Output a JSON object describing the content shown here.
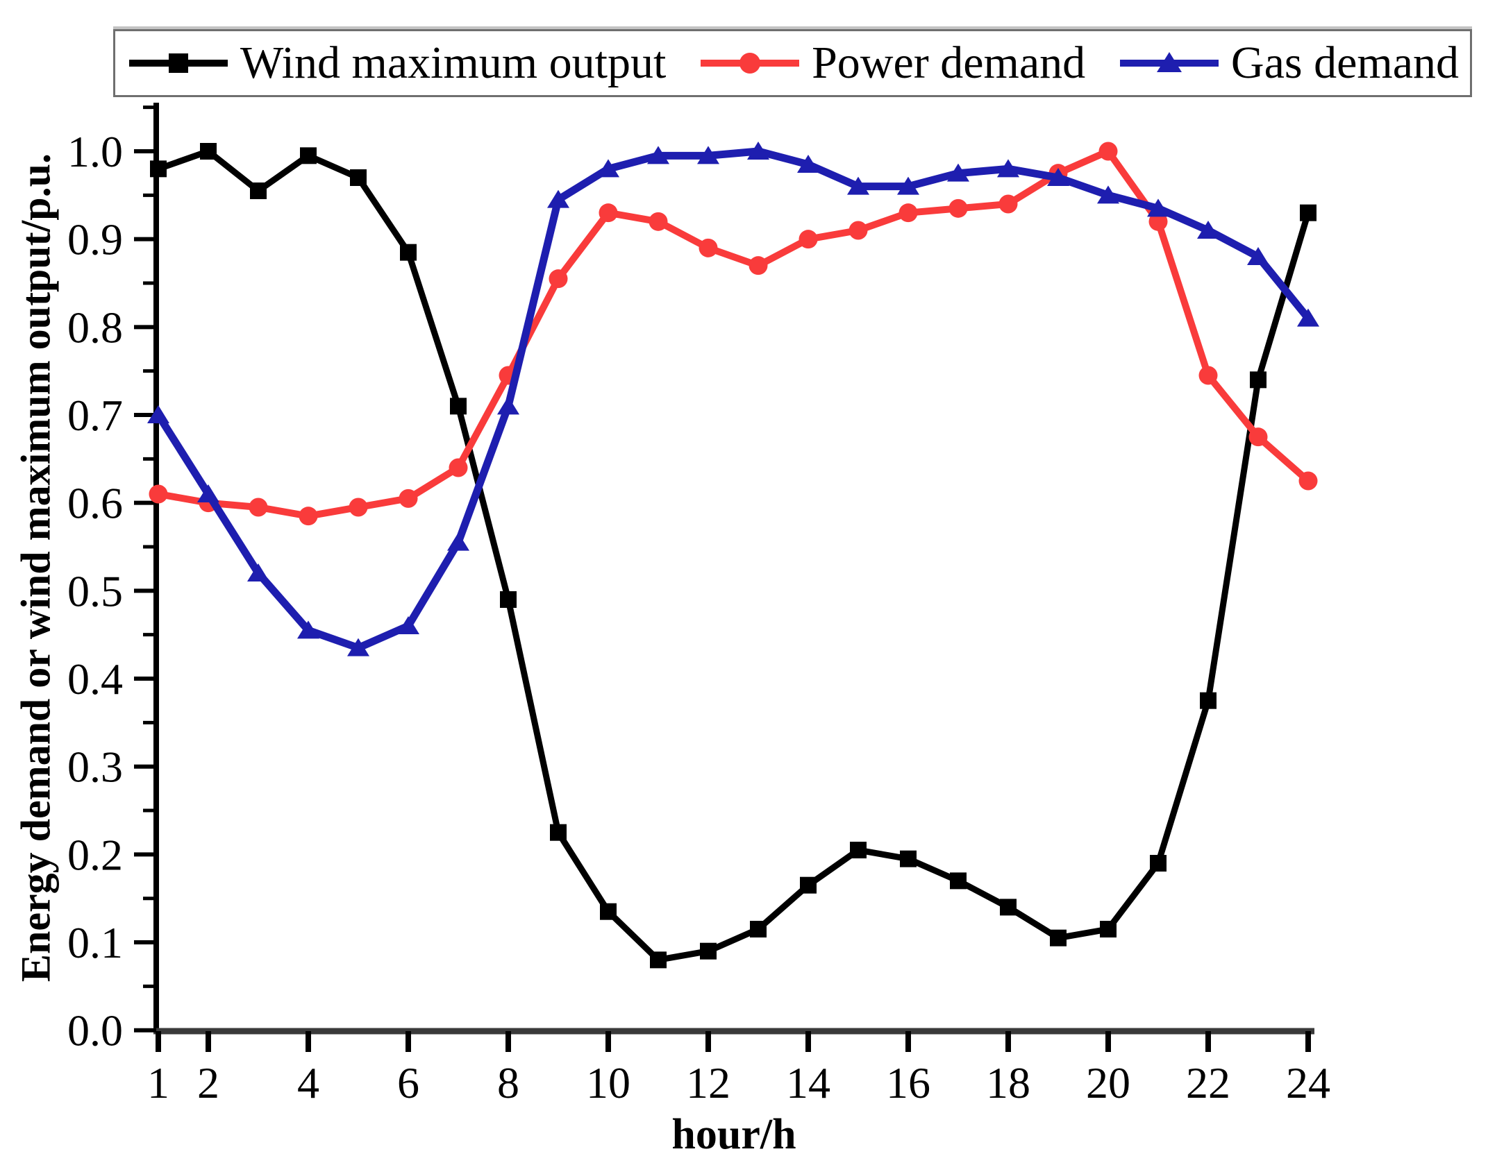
{
  "figure": {
    "background": "#ffffff"
  },
  "legend": {
    "items": [
      {
        "label": "Wind maximum output",
        "marker": "square",
        "color": "#000000"
      },
      {
        "label": "Power demand",
        "marker": "circle",
        "color": "#f93b3b"
      },
      {
        "label": "Gas demand",
        "marker": "triangle",
        "color": "#1e1eaf"
      }
    ]
  },
  "chart_data": {
    "type": "line",
    "title": "",
    "xlabel": "hour/h",
    "ylabel": "Energy demand or wind maximum output/p.u.",
    "x": [
      1,
      2,
      3,
      4,
      5,
      6,
      7,
      8,
      9,
      10,
      11,
      12,
      13,
      14,
      15,
      16,
      17,
      18,
      19,
      20,
      21,
      22,
      23,
      24
    ],
    "xlim": [
      1,
      24
    ],
    "ylim": [
      0.0,
      1.05
    ],
    "x_major_ticks": [
      1,
      2,
      4,
      6,
      8,
      10,
      12,
      14,
      16,
      18,
      20,
      22,
      24
    ],
    "y_major_ticks": [
      0.0,
      0.1,
      0.2,
      0.3,
      0.4,
      0.5,
      0.6,
      0.7,
      0.8,
      0.9,
      1.0
    ],
    "y_minor_step": 0.05,
    "grid": false,
    "legend_position": "top",
    "axis_color": "#000000",
    "x_axis_line_color": "#3a3a3a",
    "series": [
      {
        "name": "Wind maximum output",
        "marker": "square",
        "color": "#000000",
        "values": [
          0.98,
          1.0,
          0.955,
          0.995,
          0.97,
          0.885,
          0.71,
          0.49,
          0.225,
          0.135,
          0.08,
          0.09,
          0.115,
          0.165,
          0.205,
          0.195,
          0.17,
          0.14,
          0.105,
          0.115,
          0.19,
          0.375,
          0.74,
          0.93
        ]
      },
      {
        "name": "Power demand",
        "marker": "circle",
        "color": "#f93b3b",
        "values": [
          0.61,
          0.6,
          0.595,
          0.585,
          0.595,
          0.605,
          0.64,
          0.745,
          0.855,
          0.93,
          0.92,
          0.89,
          0.87,
          0.9,
          0.91,
          0.93,
          0.935,
          0.94,
          0.975,
          1.0,
          0.92,
          0.745,
          0.675,
          0.625
        ]
      },
      {
        "name": "Gas demand",
        "marker": "triangle",
        "color": "#1e1eaf",
        "values": [
          0.7,
          0.61,
          0.52,
          0.455,
          0.435,
          0.46,
          0.555,
          0.71,
          0.945,
          0.98,
          0.995,
          0.995,
          1.0,
          0.985,
          0.96,
          0.96,
          0.975,
          0.98,
          0.97,
          0.95,
          0.935,
          0.91,
          0.88,
          0.81
        ]
      }
    ]
  }
}
